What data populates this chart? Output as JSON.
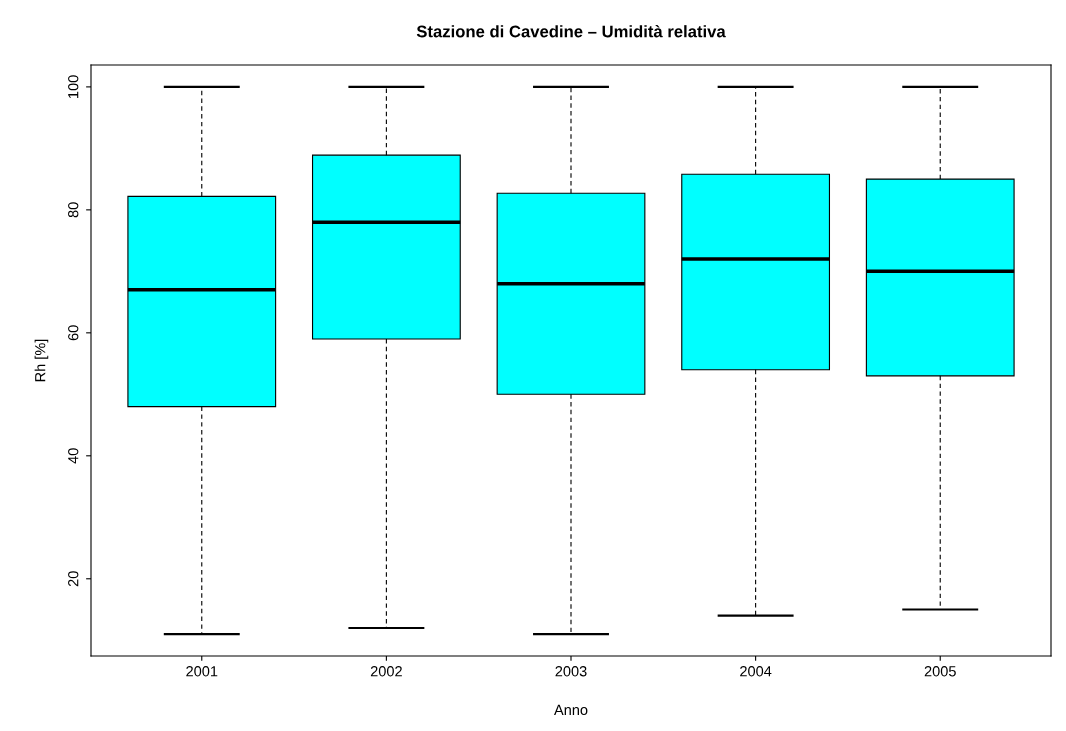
{
  "chart_data": {
    "type": "box",
    "title": "Stazione di Cavedine – Umidità relativa",
    "xlabel": "Anno",
    "ylabel": "Rh [%]",
    "categories": [
      "2001",
      "2002",
      "2003",
      "2004",
      "2005"
    ],
    "color": "#00ffff",
    "boxes": [
      {
        "low": 11,
        "q1": 48,
        "median": 67,
        "q3": 82.2,
        "high": 100
      },
      {
        "low": 12,
        "q1": 59,
        "median": 78,
        "q3": 88.9,
        "high": 100
      },
      {
        "low": 11,
        "q1": 50,
        "median": 68,
        "q3": 82.7,
        "high": 100
      },
      {
        "low": 14,
        "q1": 54,
        "median": 72,
        "q3": 85.8,
        "high": 100
      },
      {
        "low": 15,
        "q1": 53,
        "median": 70,
        "q3": 85,
        "high": 100
      }
    ],
    "ylim": [
      7.44,
      103.56
    ],
    "yticks": [
      20,
      40,
      60,
      80,
      100
    ],
    "grid": false,
    "legend": false
  }
}
